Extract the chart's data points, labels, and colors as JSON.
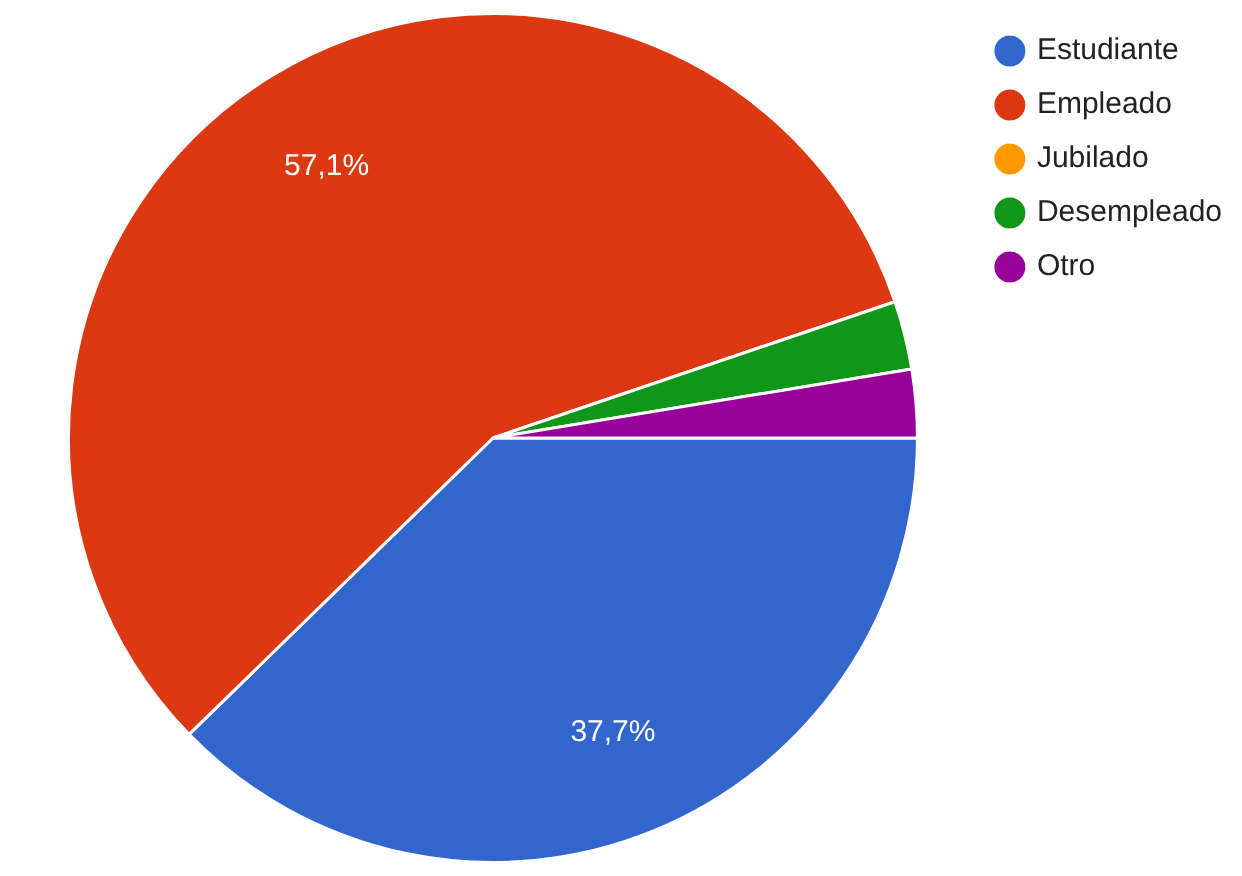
{
  "chart_data": {
    "type": "pie",
    "categories": [
      "Estudiante",
      "Empleado",
      "Jubilado",
      "Desempleado",
      "Otro"
    ],
    "values": [
      37.7,
      57.1,
      0,
      2.6,
      2.6
    ],
    "colors": [
      "#3366cc",
      "#dc3912",
      "#ff9900",
      "#109618",
      "#990099"
    ],
    "value_labels": [
      "37,7%",
      "57,1%",
      null,
      null,
      null
    ],
    "legend": "top right"
  }
}
